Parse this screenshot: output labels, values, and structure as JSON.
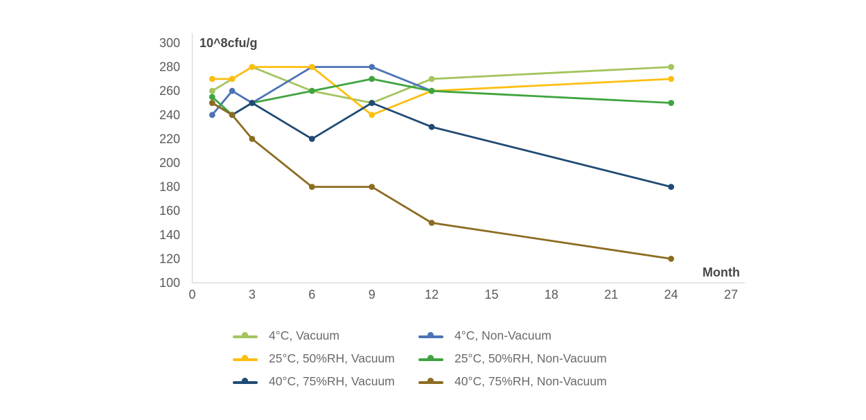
{
  "chart_data": {
    "type": "line",
    "title": "",
    "y_axis_label": "10^8cfu/g",
    "x_axis_label": "Month",
    "x": [
      1,
      2,
      3,
      6,
      9,
      12,
      24
    ],
    "xticks": [
      0,
      3,
      6,
      9,
      12,
      15,
      18,
      21,
      24,
      27
    ],
    "yticks": [
      100,
      120,
      140,
      160,
      180,
      200,
      220,
      240,
      260,
      280,
      300
    ],
    "xlim": [
      0,
      27.7
    ],
    "ylim": [
      100,
      300
    ],
    "grid": false,
    "legend_position": "bottom",
    "marker": "circle",
    "series": [
      {
        "name": "4°C, Vacuum",
        "color": "#A4C45E",
        "values": [
          260,
          270,
          280,
          260,
          250,
          270,
          280
        ]
      },
      {
        "name": "4°C, Non-Vacuum",
        "color": "#4C73B6",
        "values": [
          240,
          260,
          250,
          280,
          280,
          260,
          null
        ]
      },
      {
        "name": "25°C, 50%RH, Vacuum",
        "color": "#FCBF10",
        "values": [
          270,
          270,
          280,
          280,
          240,
          260,
          270
        ]
      },
      {
        "name": "25°C, 50%RH, Non-Vacuum",
        "color": "#3FA43F",
        "values": [
          255,
          240,
          250,
          260,
          270,
          260,
          250
        ]
      },
      {
        "name": "40°C, 75%RH, Vacuum",
        "color": "#204A73",
        "values": [
          250,
          240,
          250,
          220,
          250,
          230,
          180
        ]
      },
      {
        "name": "40°C, 75%RH, Non-Vacuum",
        "color": "#8B6C20",
        "values": [
          250,
          240,
          220,
          180,
          180,
          150,
          120
        ]
      }
    ]
  },
  "colors": {
    "background": "#FFFFFF",
    "axis_line": "#DCDCDC",
    "tick_text": "#595959",
    "axis_title_text": "#474747",
    "legend_text": "#6A6A6A"
  }
}
